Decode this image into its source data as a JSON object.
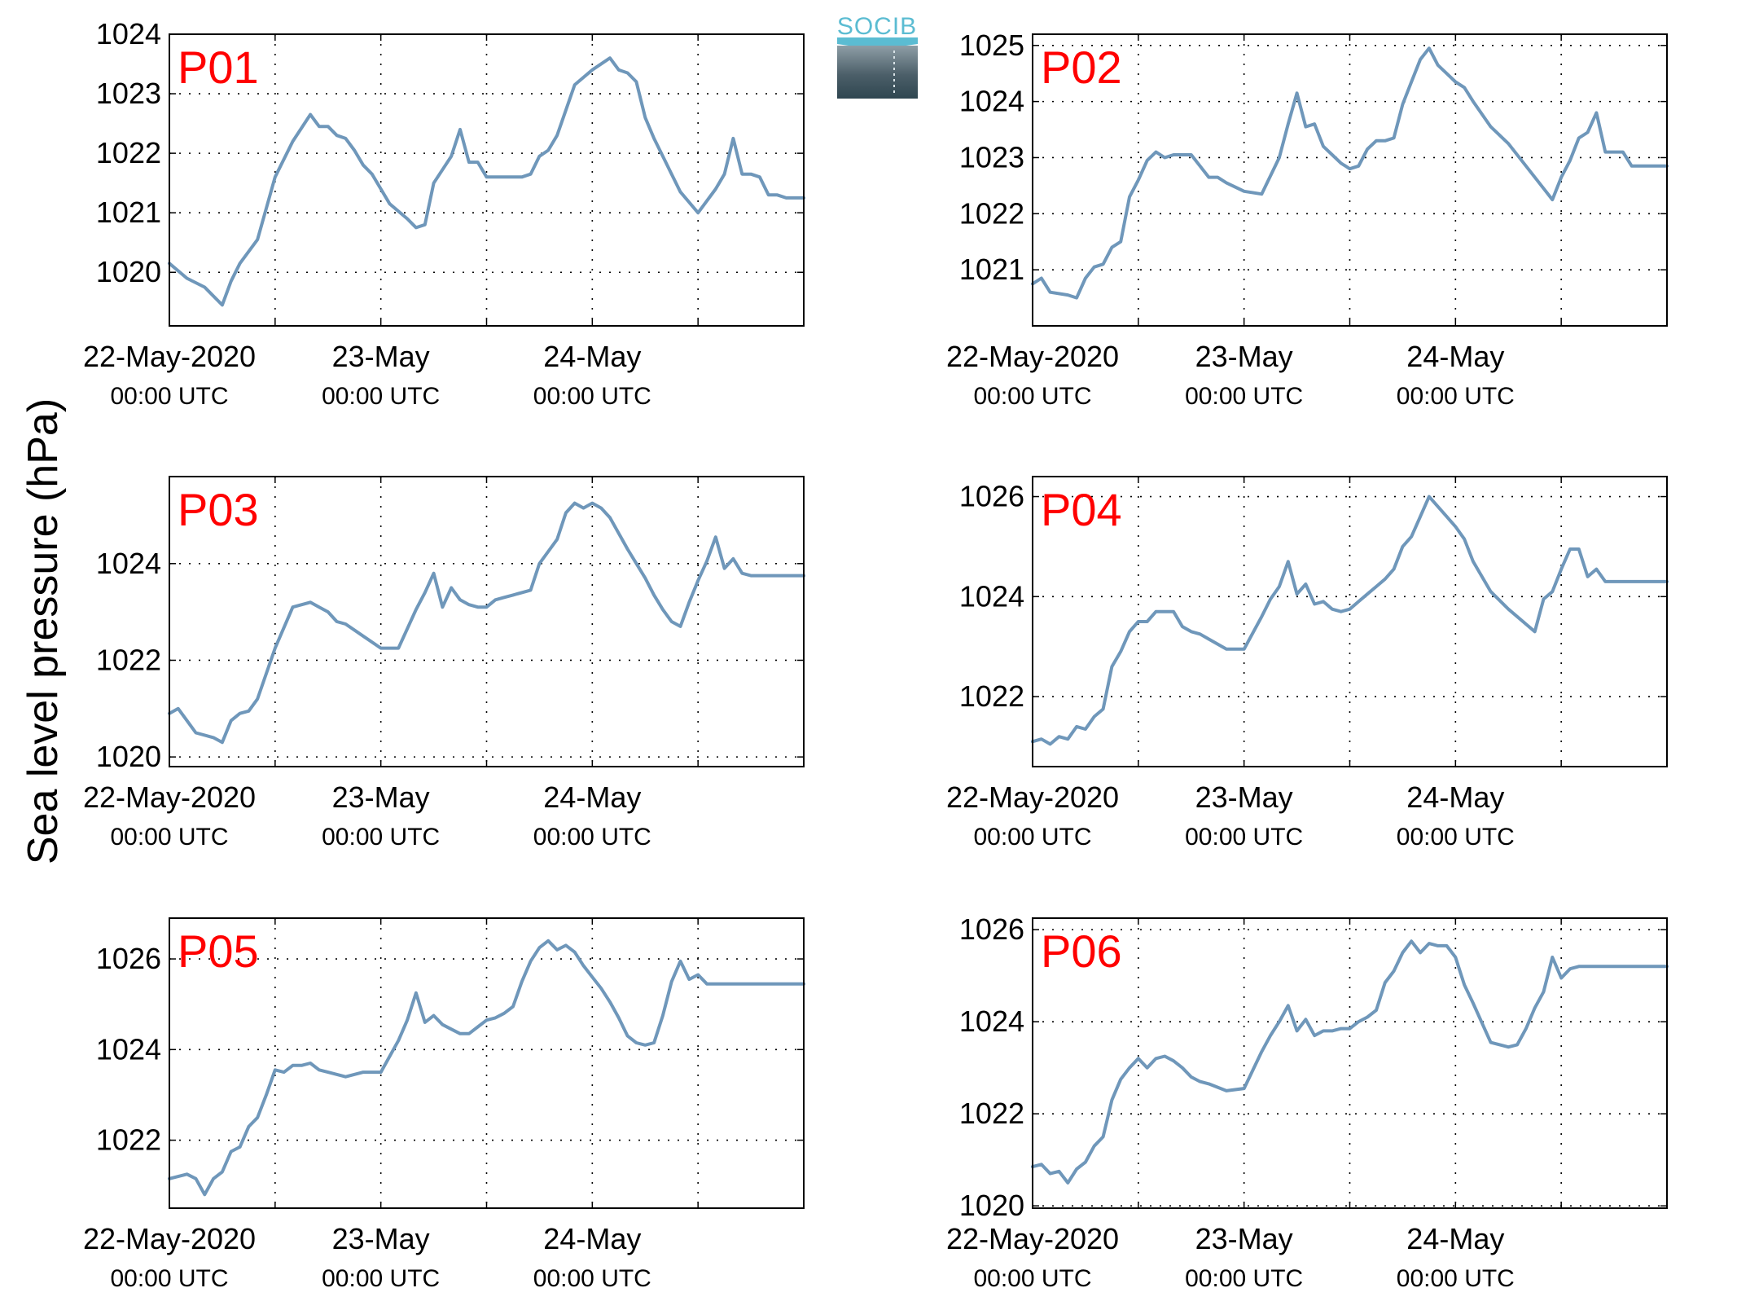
{
  "figure": {
    "ylabel": "Sea level pressure (hPa)",
    "logo_text": "SOCIB"
  },
  "colors": {
    "line": "#6f97ba",
    "panel_label": "#ff0000",
    "logo_accent": "#5bbcd2",
    "logo_dark": "#2f4650"
  },
  "chart_data": [
    {
      "type": "line",
      "panel": "P01",
      "x_ticks": [
        {
          "main": "22-May-2020",
          "sub": "00:00 UTC"
        },
        {
          "main": "23-May",
          "sub": "00:00 UTC"
        },
        {
          "main": "24-May",
          "sub": "00:00 UTC"
        }
      ],
      "y_ticks": [
        1020,
        1021,
        1022,
        1023,
        1024
      ],
      "ylim": [
        1019.1,
        1024.0
      ],
      "x_hours": [
        0,
        2,
        4,
        6,
        7,
        8,
        9,
        10,
        12,
        14,
        16,
        17,
        18,
        19,
        20,
        21,
        22,
        23,
        24,
        25,
        27,
        28,
        29,
        30,
        32,
        33,
        34,
        35,
        36,
        37,
        38,
        40,
        41,
        42,
        43,
        44,
        46,
        48,
        50,
        51,
        52,
        53,
        54,
        55,
        56,
        57,
        58,
        60,
        62,
        63,
        64,
        65,
        66,
        67,
        68,
        69,
        70,
        71,
        72
      ],
      "values": [
        1020.15,
        1019.9,
        1019.75,
        1019.45,
        1019.85,
        1020.15,
        1020.35,
        1020.55,
        1021.6,
        1022.2,
        1022.65,
        1022.45,
        1022.45,
        1022.3,
        1022.25,
        1022.05,
        1021.8,
        1021.65,
        1021.4,
        1021.15,
        1020.9,
        1020.75,
        1020.8,
        1021.5,
        1021.95,
        1022.4,
        1021.85,
        1021.85,
        1021.6,
        1021.6,
        1021.6,
        1021.6,
        1021.65,
        1021.95,
        1022.05,
        1022.3,
        1023.15,
        1023.4,
        1023.6,
        1023.4,
        1023.35,
        1023.2,
        1022.6,
        1022.25,
        1021.95,
        1021.65,
        1021.35,
        1021.0,
        1021.4,
        1021.65,
        1022.25,
        1021.65,
        1021.65,
        1021.6,
        1021.3,
        1021.3,
        1021.25,
        1021.25,
        1021.25
      ]
    },
    {
      "type": "line",
      "panel": "P02",
      "x_ticks": [
        {
          "main": "22-May-2020",
          "sub": "00:00 UTC"
        },
        {
          "main": "23-May",
          "sub": "00:00 UTC"
        },
        {
          "main": "24-May",
          "sub": "00:00 UTC"
        }
      ],
      "y_ticks": [
        1021,
        1022,
        1023,
        1024,
        1025
      ],
      "ylim": [
        1020.0,
        1025.2
      ],
      "x_hours": [
        0,
        1,
        2,
        4,
        5,
        6,
        7,
        8,
        9,
        10,
        11,
        12,
        13,
        14,
        15,
        16,
        17,
        18,
        19,
        20,
        21,
        22,
        24,
        26,
        28,
        29,
        30,
        31,
        32,
        33,
        34,
        35,
        36,
        37,
        38,
        39,
        40,
        41,
        42,
        43,
        44,
        45,
        46,
        47,
        48,
        49,
        50,
        52,
        54,
        56,
        58,
        59,
        60,
        61,
        62,
        63,
        64,
        65,
        66,
        67,
        68,
        69,
        70,
        71,
        72
      ],
      "values": [
        1020.75,
        1020.85,
        1020.6,
        1020.55,
        1020.5,
        1020.85,
        1021.05,
        1021.1,
        1021.4,
        1021.5,
        1022.3,
        1022.6,
        1022.95,
        1023.1,
        1023.0,
        1023.05,
        1023.05,
        1023.05,
        1022.85,
        1022.65,
        1022.65,
        1022.55,
        1022.4,
        1022.35,
        1023.0,
        1023.6,
        1024.15,
        1023.55,
        1023.6,
        1023.2,
        1023.05,
        1022.9,
        1022.8,
        1022.85,
        1023.15,
        1023.3,
        1023.3,
        1023.35,
        1023.95,
        1024.35,
        1024.75,
        1024.95,
        1024.65,
        1024.5,
        1024.35,
        1024.25,
        1024.0,
        1023.55,
        1023.25,
        1022.85,
        1022.45,
        1022.25,
        1022.65,
        1022.95,
        1023.35,
        1023.45,
        1023.8,
        1023.1,
        1023.1,
        1023.1,
        1022.85,
        1022.85,
        1022.85,
        1022.85,
        1022.85
      ]
    },
    {
      "type": "line",
      "panel": "P03",
      "x_ticks": [
        {
          "main": "22-May-2020",
          "sub": "00:00 UTC"
        },
        {
          "main": "23-May",
          "sub": "00:00 UTC"
        },
        {
          "main": "24-May",
          "sub": "00:00 UTC"
        }
      ],
      "y_ticks": [
        1020,
        1022,
        1024
      ],
      "ylim": [
        1019.8,
        1025.8
      ],
      "x_hours": [
        0,
        1,
        2,
        3,
        5,
        6,
        7,
        8,
        9,
        10,
        12,
        14,
        16,
        17,
        18,
        19,
        20,
        22,
        24,
        26,
        28,
        29,
        30,
        31,
        32,
        33,
        34,
        35,
        36,
        37,
        38,
        39,
        40,
        41,
        42,
        43,
        44,
        45,
        46,
        47,
        48,
        49,
        50,
        52,
        54,
        55,
        56,
        57,
        58,
        59,
        60,
        61,
        62,
        63,
        64,
        65,
        66,
        67,
        68,
        69,
        70,
        71,
        72
      ],
      "values": [
        1020.9,
        1021.0,
        1020.75,
        1020.5,
        1020.4,
        1020.3,
        1020.75,
        1020.9,
        1020.95,
        1021.2,
        1022.25,
        1023.1,
        1023.2,
        1023.1,
        1023.0,
        1022.8,
        1022.75,
        1022.5,
        1022.25,
        1022.25,
        1023.05,
        1023.4,
        1023.8,
        1023.1,
        1023.5,
        1023.25,
        1023.15,
        1023.1,
        1023.1,
        1023.25,
        1023.3,
        1023.35,
        1023.4,
        1023.45,
        1024.0,
        1024.25,
        1024.5,
        1025.05,
        1025.25,
        1025.15,
        1025.25,
        1025.15,
        1024.95,
        1024.3,
        1023.7,
        1023.35,
        1023.05,
        1022.8,
        1022.7,
        1023.2,
        1023.65,
        1024.05,
        1024.55,
        1023.9,
        1024.1,
        1023.8,
        1023.75,
        1023.75,
        1023.75,
        1023.75,
        1023.75,
        1023.75,
        1023.75
      ]
    },
    {
      "type": "line",
      "panel": "P04",
      "x_ticks": [
        {
          "main": "22-May-2020",
          "sub": "00:00 UTC"
        },
        {
          "main": "23-May",
          "sub": "00:00 UTC"
        },
        {
          "main": "24-May",
          "sub": "00:00 UTC"
        }
      ],
      "y_ticks": [
        1022,
        1024,
        1026
      ],
      "ylim": [
        1020.6,
        1026.4
      ],
      "x_hours": [
        0,
        1,
        2,
        3,
        4,
        5,
        6,
        7,
        8,
        9,
        10,
        11,
        12,
        13,
        14,
        15,
        16,
        17,
        18,
        19,
        20,
        22,
        24,
        26,
        27,
        28,
        29,
        30,
        31,
        32,
        33,
        34,
        35,
        36,
        37,
        38,
        39,
        40,
        41,
        42,
        43,
        44,
        45,
        46,
        47,
        48,
        49,
        50,
        52,
        54,
        56,
        57,
        58,
        59,
        60,
        61,
        62,
        63,
        64,
        65,
        66,
        67,
        68,
        69,
        70,
        71,
        72
      ],
      "values": [
        1021.1,
        1021.15,
        1021.05,
        1021.2,
        1021.15,
        1021.4,
        1021.35,
        1021.6,
        1021.75,
        1022.6,
        1022.9,
        1023.3,
        1023.5,
        1023.5,
        1023.7,
        1023.7,
        1023.7,
        1023.4,
        1023.3,
        1023.25,
        1023.15,
        1022.95,
        1022.95,
        1023.6,
        1023.95,
        1024.2,
        1024.7,
        1024.05,
        1024.25,
        1023.85,
        1023.9,
        1023.75,
        1023.7,
        1023.75,
        1023.9,
        1024.05,
        1024.2,
        1024.35,
        1024.55,
        1025.0,
        1025.2,
        1025.6,
        1026.0,
        1025.8,
        1025.6,
        1025.4,
        1025.15,
        1024.7,
        1024.1,
        1023.75,
        1023.45,
        1023.3,
        1023.95,
        1024.1,
        1024.55,
        1024.95,
        1024.95,
        1024.4,
        1024.55,
        1024.3,
        1024.3,
        1024.3,
        1024.3,
        1024.3,
        1024.3,
        1024.3,
        1024.3
      ]
    },
    {
      "type": "line",
      "panel": "P05",
      "x_ticks": [
        {
          "main": "22-May-2020",
          "sub": "00:00 UTC"
        },
        {
          "main": "23-May",
          "sub": "00:00 UTC"
        },
        {
          "main": "24-May",
          "sub": "00:00 UTC"
        }
      ],
      "y_ticks": [
        1022,
        1024,
        1026
      ],
      "ylim": [
        1020.5,
        1026.9
      ],
      "x_hours": [
        0,
        1,
        2,
        3,
        4,
        5,
        6,
        7,
        8,
        9,
        10,
        11,
        12,
        13,
        14,
        15,
        16,
        17,
        18,
        20,
        22,
        24,
        26,
        27,
        28,
        29,
        30,
        31,
        32,
        33,
        34,
        35,
        36,
        37,
        38,
        39,
        40,
        41,
        42,
        43,
        44,
        45,
        46,
        47,
        48,
        49,
        50,
        51,
        52,
        53,
        54,
        55,
        56,
        57,
        58,
        59,
        60,
        61,
        62,
        63,
        64,
        65,
        66,
        67,
        68,
        69,
        70,
        71,
        72
      ],
      "values": [
        1021.15,
        1021.2,
        1021.25,
        1021.15,
        1020.8,
        1021.15,
        1021.3,
        1021.75,
        1021.85,
        1022.3,
        1022.5,
        1023.0,
        1023.55,
        1023.5,
        1023.65,
        1023.65,
        1023.7,
        1023.55,
        1023.5,
        1023.4,
        1023.5,
        1023.5,
        1024.2,
        1024.65,
        1025.25,
        1024.6,
        1024.75,
        1024.55,
        1024.45,
        1024.35,
        1024.35,
        1024.5,
        1024.65,
        1024.7,
        1024.8,
        1024.95,
        1025.5,
        1025.95,
        1026.25,
        1026.4,
        1026.2,
        1026.3,
        1026.15,
        1025.85,
        1025.6,
        1025.35,
        1025.05,
        1024.7,
        1024.3,
        1024.15,
        1024.1,
        1024.15,
        1024.75,
        1025.5,
        1025.95,
        1025.55,
        1025.65,
        1025.45,
        1025.45,
        1025.45,
        1025.45,
        1025.45,
        1025.45,
        1025.45,
        1025.45,
        1025.45,
        1025.45,
        1025.45,
        1025.45
      ]
    },
    {
      "type": "line",
      "panel": "P06",
      "x_ticks": [
        {
          "main": "22-May-2020",
          "sub": "00:00 UTC"
        },
        {
          "main": "23-May",
          "sub": "00:00 UTC"
        },
        {
          "main": "24-May",
          "sub": "00:00 UTC"
        }
      ],
      "y_ticks": [
        1020,
        1022,
        1024,
        1026
      ],
      "ylim": [
        1019.95,
        1026.25
      ],
      "x_hours": [
        0,
        1,
        2,
        3,
        4,
        5,
        6,
        7,
        8,
        9,
        10,
        11,
        12,
        13,
        14,
        15,
        16,
        17,
        18,
        19,
        20,
        22,
        24,
        26,
        27,
        28,
        29,
        30,
        31,
        32,
        33,
        34,
        35,
        36,
        37,
        38,
        39,
        40,
        41,
        42,
        43,
        44,
        45,
        46,
        47,
        48,
        49,
        50,
        52,
        54,
        55,
        56,
        57,
        58,
        59,
        60,
        61,
        62,
        63,
        64,
        65,
        66,
        67,
        68,
        69,
        70,
        71,
        72
      ],
      "values": [
        1020.85,
        1020.9,
        1020.7,
        1020.75,
        1020.5,
        1020.8,
        1020.95,
        1021.3,
        1021.5,
        1022.3,
        1022.75,
        1023.0,
        1023.2,
        1023.0,
        1023.2,
        1023.25,
        1023.15,
        1023.0,
        1022.8,
        1022.7,
        1022.65,
        1022.5,
        1022.55,
        1023.35,
        1023.7,
        1024.0,
        1024.35,
        1023.8,
        1024.05,
        1023.7,
        1023.8,
        1023.8,
        1023.85,
        1023.85,
        1024.0,
        1024.1,
        1024.25,
        1024.85,
        1025.1,
        1025.5,
        1025.75,
        1025.5,
        1025.7,
        1025.65,
        1025.65,
        1025.4,
        1024.8,
        1024.4,
        1023.55,
        1023.45,
        1023.5,
        1023.85,
        1024.3,
        1024.65,
        1025.4,
        1024.95,
        1025.15,
        1025.2,
        1025.2,
        1025.2,
        1025.2,
        1025.2,
        1025.2,
        1025.2,
        1025.2,
        1025.2,
        1025.2,
        1025.2
      ]
    }
  ]
}
